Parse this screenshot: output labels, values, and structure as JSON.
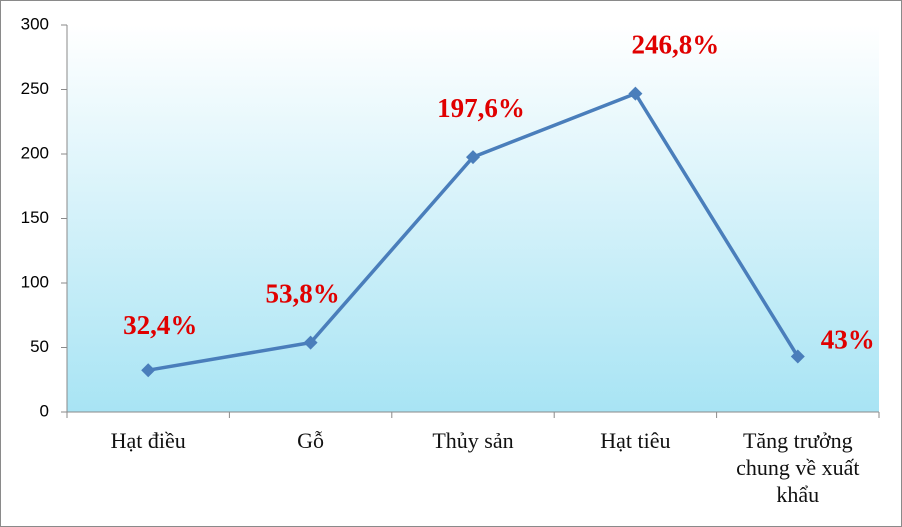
{
  "chart_data": {
    "type": "line",
    "categories": [
      "Hạt điều",
      "Gỗ",
      "Thủy sản",
      "Hạt tiêu",
      "Tăng trưởng chung về xuất khẩu"
    ],
    "values": [
      32.4,
      53.8,
      197.6,
      246.8,
      43
    ],
    "value_labels": [
      "32,4%",
      "53,8%",
      "197,6%",
      "246,8%",
      "43%"
    ],
    "color": "#4a7ebb",
    "label_color": "#e00000",
    "ylim": [
      0,
      300
    ],
    "yticks": [
      0,
      50,
      100,
      150,
      200,
      250,
      300
    ]
  }
}
